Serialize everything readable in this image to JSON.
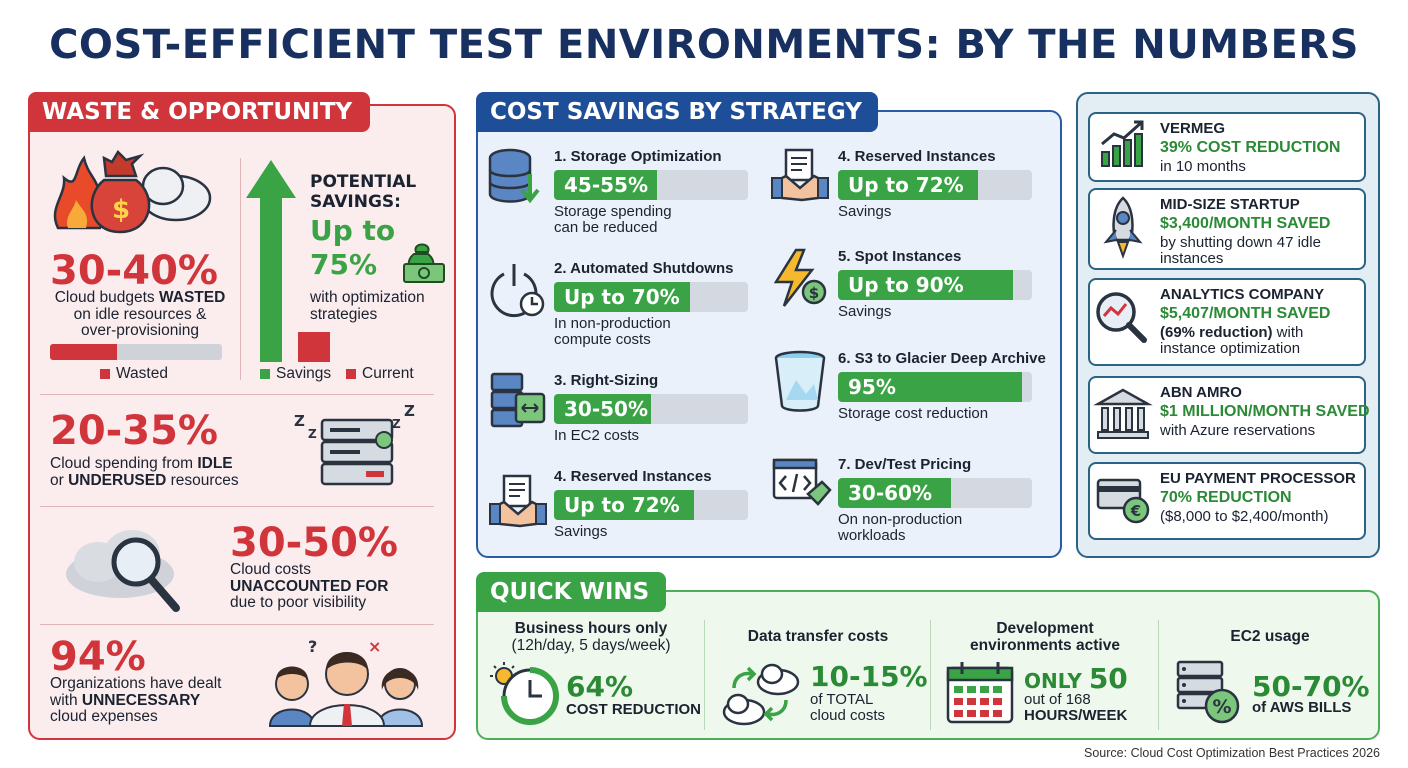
{
  "title": "COST-EFFICIENT TEST ENVIRONMENTS: BY THE NUMBERS",
  "waste": {
    "header": "WASTE & OPPORTUNITY",
    "stat1": {
      "value": "30-40%",
      "line1": "Cloud budgets ",
      "bold1": "WASTED",
      "line2": "on idle resources &",
      "line3": "over-provisioning",
      "wasted_fraction": 0.39,
      "legend": "Wasted"
    },
    "potential": {
      "label1": "POTENTIAL",
      "label2": "SAVINGS:",
      "value1": "Up to",
      "value2": "75%",
      "desc1": "with optimization",
      "desc2": "strategies",
      "legend_savings": "Savings",
      "legend_current": "Current"
    },
    "stat2": {
      "value": "20-35%",
      "pre": "Cloud spending from ",
      "bold1": "IDLE",
      "mid": "or ",
      "bold2": "UNDERUSED",
      "post": " resources"
    },
    "stat3": {
      "value": "30-50%",
      "line1": "Cloud costs",
      "bold1": "UNACCOUNTED FOR",
      "line3": "due to poor visibility"
    },
    "stat4": {
      "value": "94%",
      "line1": "Organizations have dealt",
      "pre2": "with ",
      "bold2": "UNNECESSARY",
      "line3": "cloud expenses"
    }
  },
  "cost": {
    "header": "COST SAVINGS BY STRATEGY",
    "strategies": [
      {
        "title": "1. Storage Optimization",
        "bar": "45-55%",
        "fill": 0.53,
        "d1": "Storage spending",
        "d2": "can be reduced"
      },
      {
        "title": "2. Automated Shutdowns",
        "bar": "Up to 70%",
        "fill": 0.7,
        "d1": "In non-production",
        "d2": "compute costs"
      },
      {
        "title": "3. Right-Sizing",
        "bar": "30-50%",
        "fill": 0.5,
        "d1": "In EC2 costs",
        "d2": ""
      },
      {
        "title": "4. Reserved Instances",
        "bar": "Up to 72%",
        "fill": 0.72,
        "d1": "Savings",
        "d2": ""
      },
      {
        "title": "4. Reserved Instances",
        "bar": "Up to 72%",
        "fill": 0.72,
        "d1": "Savings",
        "d2": ""
      },
      {
        "title": "5. Spot Instances",
        "bar": "Up to 90%",
        "fill": 0.9,
        "d1": "Savings",
        "d2": ""
      },
      {
        "title": "6. S3 to Glacier Deep Archive",
        "bar": "95%",
        "fill": 0.95,
        "d1": "Storage cost reduction",
        "d2": ""
      },
      {
        "title": "7. Dev/Test Pricing",
        "bar": "30-60%",
        "fill": 0.58,
        "d1": "On non-production",
        "d2": "workloads"
      }
    ]
  },
  "cases": [
    {
      "name": "VERMEG",
      "stat": "39% COST REDUCTION",
      "desc": "in 10 months"
    },
    {
      "name": "MID-SIZE STARTUP",
      "stat": "$3,400/MONTH SAVED",
      "desc": "by shutting down 47 idle instances"
    },
    {
      "name": "ANALYTICS COMPANY",
      "stat": "$5,407/MONTH SAVED",
      "desc_bold": "(69% reduction)",
      "desc": " with instance optimization"
    },
    {
      "name": "ABN AMRO",
      "stat": "$1 MILLION/MONTH SAVED",
      "desc": "with Azure reservations"
    },
    {
      "name": "EU PAYMENT PROCESSOR",
      "stat": "70% REDUCTION",
      "desc": "($8,000 to $2,400/month)"
    }
  ],
  "quick": {
    "header": "QUICK WINS",
    "items": [
      {
        "title1": "Business hours only",
        "title2": "(12h/day, 5 days/week)",
        "big": "64%",
        "small": "COST REDUCTION"
      },
      {
        "title1": "Data transfer costs",
        "title2": "",
        "big": "10-15%",
        "small1": "of TOTAL",
        "small2": "cloud costs"
      },
      {
        "title1": "Development",
        "title2": "environments active",
        "big_pre": "ONLY ",
        "big": "50",
        "small1": "out of 168",
        "small2": "HOURS/WEEK"
      },
      {
        "title1": "EC2 usage",
        "title2": "",
        "big": "50-70%",
        "small": "of AWS BILLS"
      }
    ]
  },
  "source": "Source: Cloud Cost Optimization Best Practices 2026"
}
